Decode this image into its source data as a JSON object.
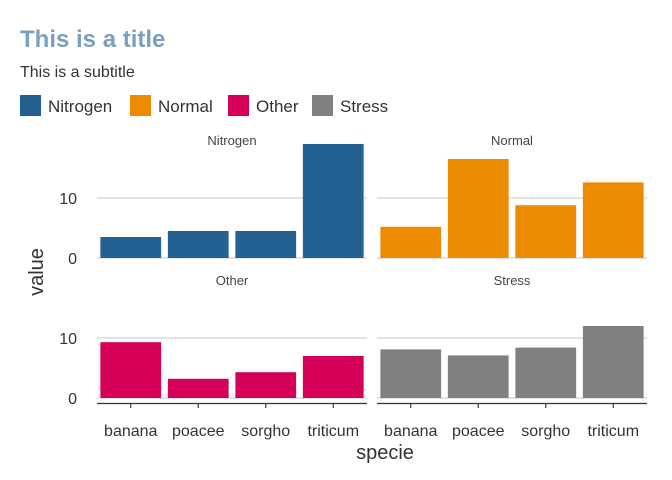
{
  "chart_data": {
    "type": "bar",
    "title": "This is a title",
    "subtitle": "This is a subtitle",
    "xlabel": "specie",
    "ylabel": "value",
    "categories": [
      "banana",
      "poacee",
      "sorgho",
      "triticum"
    ],
    "ylim": [
      0,
      19
    ],
    "yticks": [
      0,
      10
    ],
    "grid": "horizontal",
    "legend_position": "top-left",
    "title_color": "#7a9fbf",
    "panels": [
      {
        "name": "Nitrogen",
        "color": "#236192",
        "values": [
          3.5,
          4.5,
          4.5,
          19
        ]
      },
      {
        "name": "Normal",
        "color": "#ed8b00",
        "values": [
          5.2,
          16.5,
          8.8,
          12.6
        ]
      },
      {
        "name": "Other",
        "color": "#d50057",
        "values": [
          9.3,
          3.2,
          4.3,
          7.0
        ]
      },
      {
        "name": "Stress",
        "color": "#808080",
        "values": [
          8.1,
          7.1,
          8.4,
          12.0
        ]
      }
    ]
  }
}
